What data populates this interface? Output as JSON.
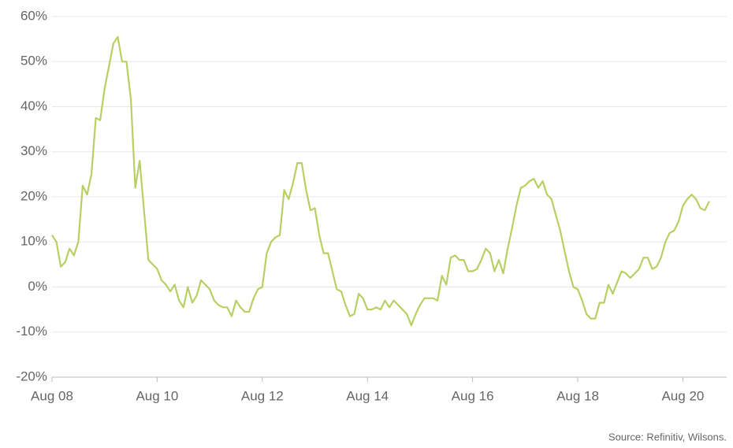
{
  "chart_data": {
    "type": "line",
    "source": "Source: Refinitiv, Wilsons.",
    "x": [
      0,
      1,
      2,
      3,
      4,
      5,
      6,
      7,
      8,
      9,
      10,
      11,
      12,
      13,
      14,
      15,
      16,
      17,
      18,
      19,
      20,
      21,
      22,
      23,
      24,
      25,
      26,
      27,
      28,
      29,
      30,
      31,
      32,
      33,
      34,
      35,
      36,
      37,
      38,
      39,
      40,
      41,
      42,
      43,
      44,
      45,
      46,
      47,
      48,
      49,
      50,
      51,
      52,
      53,
      54,
      55,
      56,
      57,
      58,
      59,
      60,
      61,
      62,
      63,
      64,
      65,
      66,
      67,
      68,
      69,
      70,
      71,
      72,
      73,
      74,
      75,
      76,
      77,
      78,
      79,
      80,
      81,
      82,
      83,
      84,
      85,
      86,
      87,
      88,
      89,
      90,
      91,
      92,
      93,
      94,
      95,
      96,
      97,
      98,
      99,
      100,
      101,
      102,
      103,
      104,
      105,
      106,
      107,
      108,
      109,
      110,
      111,
      112,
      113,
      114,
      115,
      116,
      117,
      118,
      119,
      120,
      121,
      122,
      123,
      124,
      125,
      126,
      127,
      128,
      129,
      130,
      131,
      132,
      133,
      134,
      135,
      136,
      137,
      138,
      139,
      140,
      141,
      142,
      143,
      144,
      145,
      146,
      147,
      148,
      149,
      150
    ],
    "series": [
      {
        "color": "#b8cf63",
        "values": [
          11.5,
          10,
          4.5,
          5.5,
          8.5,
          7,
          10,
          22.5,
          20.5,
          25,
          37.5,
          37,
          44,
          49,
          54,
          55.5,
          50,
          50,
          41.5,
          22,
          28,
          17,
          6,
          5,
          4,
          1.5,
          0.5,
          -1,
          0.5,
          -3,
          -4.5,
          0,
          -3.5,
          -2,
          1.5,
          0.5,
          -0.5,
          -3,
          -4,
          -4.5,
          -4.5,
          -6.5,
          -3,
          -4.5,
          -5.5,
          -5.5,
          -2.5,
          -0.5,
          0,
          7.5,
          10,
          11,
          11.5,
          21.5,
          19.5,
          23,
          27.5,
          27.5,
          21.5,
          17,
          17.5,
          11.5,
          7.5,
          7.5,
          3.5,
          -0.5,
          -1,
          -4,
          -6.5,
          -6,
          -1.5,
          -2.5,
          -5,
          -5,
          -4.5,
          -5,
          -3,
          -4.5,
          -3,
          -4,
          -5,
          -6,
          -8.5,
          -6,
          -4,
          -2.5,
          -2.5,
          -2.5,
          -3,
          2.5,
          0.5,
          6.5,
          7,
          6,
          6,
          3.5,
          3.5,
          4,
          6,
          8.5,
          7.5,
          3.5,
          6,
          3,
          8.5,
          13,
          18,
          22,
          22.5,
          23.5,
          24,
          22,
          23.5,
          20.5,
          19.5,
          16,
          12.5,
          8,
          3.5,
          0,
          -0.5,
          -3,
          -6,
          -7,
          -7,
          -3.5,
          -3.5,
          0.5,
          -1.5,
          1,
          3.5,
          3,
          2,
          3,
          4,
          6.5,
          6.5,
          4,
          4.5,
          6.5,
          10,
          12,
          12.5,
          14.5,
          18,
          19.5,
          20.5,
          19.5,
          17.5,
          17,
          19
        ]
      }
    ],
    "xlim": [
      0,
      154
    ],
    "xticks": [
      {
        "value": 0,
        "label": "Aug 08"
      },
      {
        "value": 24,
        "label": "Aug 10"
      },
      {
        "value": 48,
        "label": "Aug 12"
      },
      {
        "value": 72,
        "label": "Aug 14"
      },
      {
        "value": 96,
        "label": "Aug 16"
      },
      {
        "value": 120,
        "label": "Aug 18"
      },
      {
        "value": 144,
        "label": "Aug 20"
      }
    ],
    "ylim": [
      -20,
      60
    ],
    "yticks": [
      {
        "value": -20,
        "label": "-20%"
      },
      {
        "value": -10,
        "label": "-10%"
      },
      {
        "value": 0,
        "label": "0%"
      },
      {
        "value": 10,
        "label": "10%"
      },
      {
        "value": 20,
        "label": "20%"
      },
      {
        "value": 30,
        "label": "30%"
      },
      {
        "value": 40,
        "label": "40%"
      },
      {
        "value": 50,
        "label": "50%"
      },
      {
        "value": 60,
        "label": "60%"
      }
    ],
    "grid": true
  }
}
